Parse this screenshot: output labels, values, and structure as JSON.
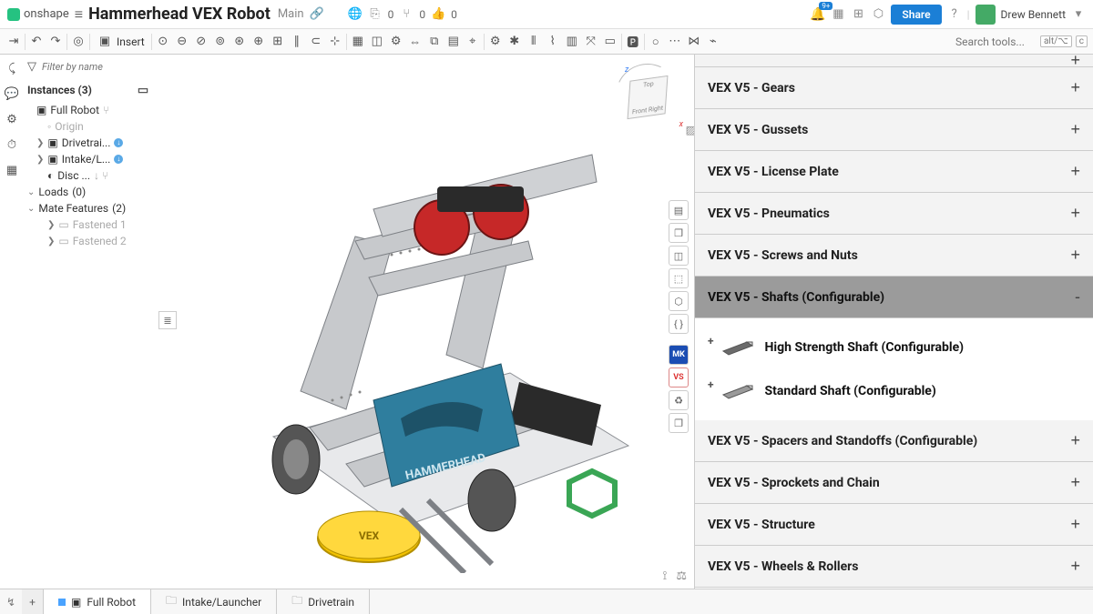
{
  "app": {
    "brand": "onshape"
  },
  "doc": {
    "title": "Hammerhead VEX Robot",
    "branch": "Main"
  },
  "topstats": {
    "versions": "0",
    "forks": "0",
    "likes": "0"
  },
  "user": {
    "name": "Drew Bennett",
    "notifications": "9+"
  },
  "share": {
    "label": "Share"
  },
  "toolbar": {
    "insert_label": "Insert"
  },
  "search": {
    "placeholder": "Search tools...",
    "kbd1": "alt/⌥",
    "kbd2": "c"
  },
  "filter": {
    "placeholder": "Filter by name"
  },
  "tree": {
    "instances_label": "Instances",
    "instances_count": "(3)",
    "items": [
      {
        "label": "Full Robot"
      },
      {
        "label": "Origin"
      },
      {
        "label": "Drivetrai..."
      },
      {
        "label": "Intake/L..."
      },
      {
        "label": "Disc ..."
      }
    ],
    "loads_label": "Loads",
    "loads_count": "(0)",
    "mate_label": "Mate Features",
    "mate_count": "(2)",
    "mates": [
      {
        "label": "Fastened 1"
      },
      {
        "label": "Fastened 2"
      }
    ]
  },
  "viewcube": {
    "top": "Top",
    "front": "Front",
    "right": "Right",
    "axis_z": "z",
    "axis_x": "x"
  },
  "robot_label": "HAMMERHEAD",
  "disc_label": "VEX",
  "library": {
    "sections": [
      {
        "label": "VEX V5 - Gears",
        "expanded": false
      },
      {
        "label": "VEX V5 - Gussets",
        "expanded": false
      },
      {
        "label": "VEX V5 - License Plate",
        "expanded": false
      },
      {
        "label": "VEX V5 - Pneumatics",
        "expanded": false
      },
      {
        "label": "VEX V5 - Screws and Nuts",
        "expanded": false
      },
      {
        "label": "VEX V5 - Shafts (Configurable)",
        "expanded": true,
        "items": [
          {
            "label": "High Strength Shaft (Configurable)",
            "color": "#6b6b6b"
          },
          {
            "label": "Standard Shaft (Configurable)",
            "color": "#9a9a9a"
          }
        ]
      },
      {
        "label": "VEX V5 - Spacers and Standoffs (Configurable)",
        "expanded": false
      },
      {
        "label": "VEX V5 - Sprockets and Chain",
        "expanded": false
      },
      {
        "label": "VEX V5 - Structure",
        "expanded": false
      },
      {
        "label": "VEX V5 - Wheels & Rollers",
        "expanded": false
      }
    ]
  },
  "tabs": [
    {
      "label": "Full Robot",
      "active": true,
      "icon": "assembly"
    },
    {
      "label": "Intake/Launcher",
      "active": false,
      "icon": "folder"
    },
    {
      "label": "Drivetrain",
      "active": false,
      "icon": "folder"
    }
  ],
  "colors": {
    "accent": "#1b7fd6",
    "metal": "#b9bcc0",
    "metal_dark": "#7d8085",
    "red": "#c62828",
    "yellow": "#f2c200",
    "teal": "#2f7e9e",
    "green": "#3aa655",
    "black": "#2a2a2a"
  }
}
